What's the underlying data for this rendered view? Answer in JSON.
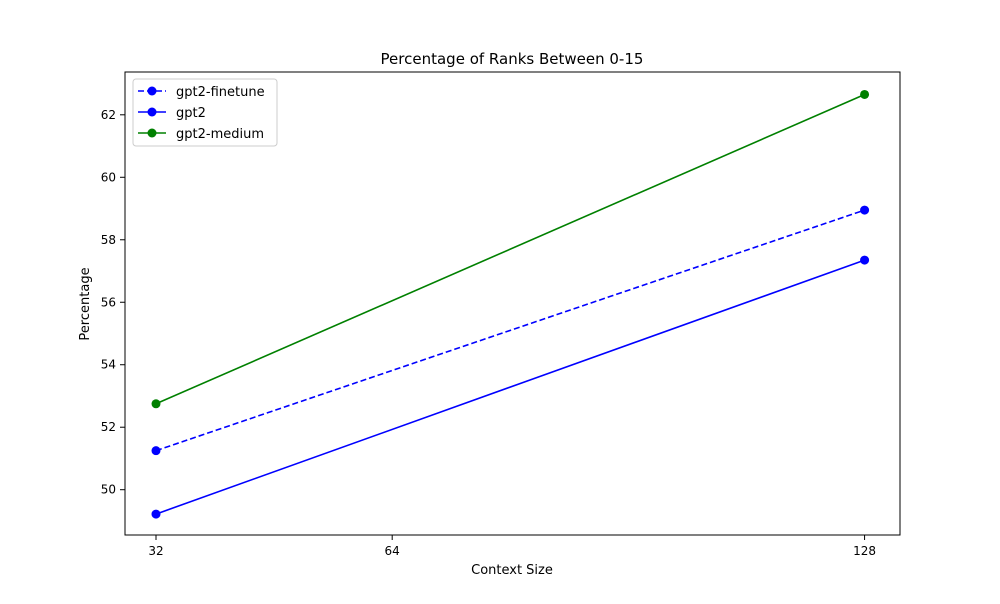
{
  "chart_data": {
    "type": "line",
    "title": "Percentage of Ranks Between 0-15",
    "xlabel": "Context Size",
    "ylabel": "Percentage",
    "x": [
      32,
      128
    ],
    "x_ticks": [
      32,
      64,
      128
    ],
    "x_tick_labels": [
      "32",
      "64",
      "128"
    ],
    "xlim": [
      27.8,
      132.8
    ],
    "y_ticks": [
      50,
      52,
      54,
      56,
      58,
      60,
      62
    ],
    "y_tick_labels": [
      "50",
      "52",
      "54",
      "56",
      "58",
      "60",
      "62"
    ],
    "ylim": [
      48.55,
      63.37
    ],
    "grid": false,
    "legend": "top-left",
    "series": [
      {
        "name": "gpt2-finetune",
        "values": [
          51.25,
          58.95
        ],
        "color": "#0000ff",
        "dashed": true,
        "marker": "circle"
      },
      {
        "name": "gpt2",
        "values": [
          49.22,
          57.35
        ],
        "color": "#0000ff",
        "dashed": false,
        "marker": "circle"
      },
      {
        "name": "gpt2-medium",
        "values": [
          52.75,
          62.65
        ],
        "color": "#008000",
        "dashed": false,
        "marker": "circle"
      }
    ]
  }
}
